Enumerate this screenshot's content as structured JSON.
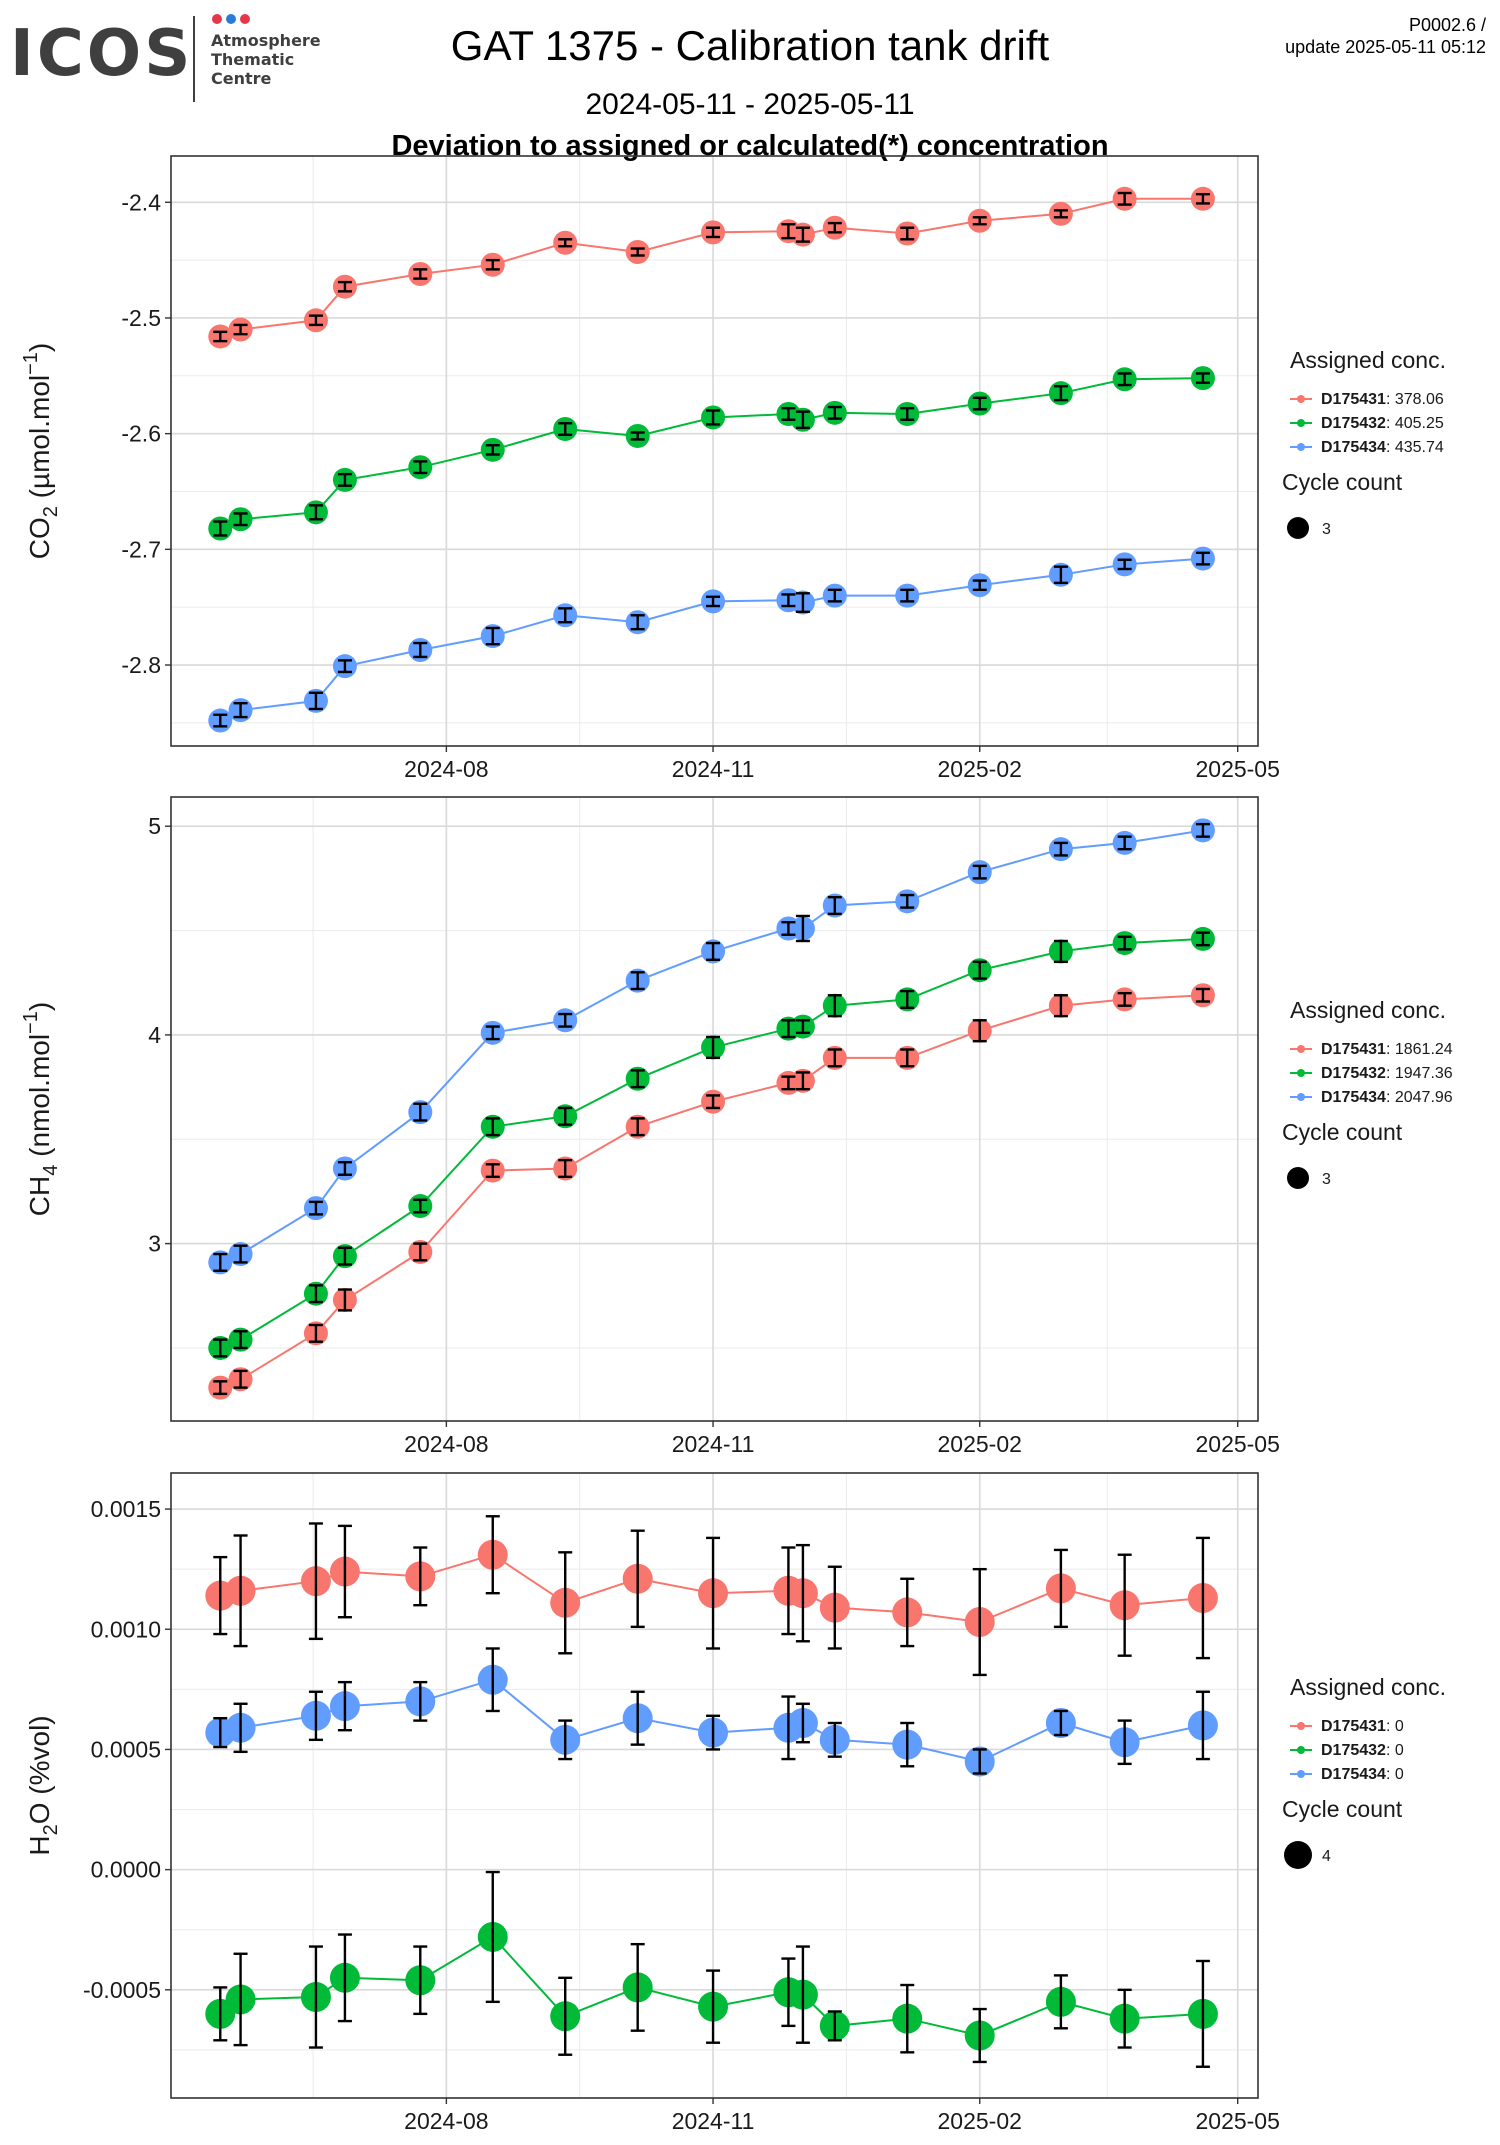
{
  "header": {
    "logo_text": "ICOS",
    "logo_sub": [
      "Atmosphere",
      "Thematic",
      "Centre"
    ],
    "logo_dot_colors": [
      "#e6364b",
      "#2b7bd6",
      "#e6364b"
    ],
    "title": "GAT 1375 - Calibration tank drift",
    "version_line1": "P0002.6 /",
    "version_line2": "update  2025-05-11 05:12",
    "date_range": "2024-05-11 - 2025-05-11",
    "subtitle": "Deviation to assigned or calculated(*) concentration"
  },
  "colors": {
    "D175431": "#f8766d",
    "D175432": "#00ba38",
    "D175434": "#619cff"
  },
  "legend": {
    "assigned_title": "Assigned conc.",
    "cycle_title": "Cycle count"
  },
  "chart_data": [
    {
      "type": "line",
      "panel": "co2",
      "ylabel": "CO2 (µmol.mol-1)",
      "ylabel_main": "CO",
      "ylabel_sub": "2",
      "ylabel_rest": " (µmol.mol",
      "ylabel_sup": "−1",
      "ylabel_end": ")",
      "ylim": [
        -2.87,
        -2.36
      ],
      "yticks": [
        -2.8,
        -2.7,
        -2.6,
        -2.5,
        -2.4
      ],
      "ytick_labels": [
        "-2.8",
        "-2.7",
        "-2.6",
        "-2.5",
        "-2.4"
      ],
      "xticks": [
        "2024-08-01",
        "2024-11-01",
        "2025-02-01",
        "2025-05-01"
      ],
      "xtick_labels": [
        "2024-08",
        "2024-11",
        "2025-02",
        "2025-05"
      ],
      "x": [
        "2024-05-15",
        "2024-05-22",
        "2024-06-17",
        "2024-06-27",
        "2024-07-23",
        "2024-08-17",
        "2024-09-11",
        "2024-10-06",
        "2024-11-01",
        "2024-11-27",
        "2024-12-02",
        "2024-12-13",
        "2025-01-07",
        "2025-02-01",
        "2025-03-01",
        "2025-03-23",
        "2025-04-19"
      ],
      "cycle_label": "3",
      "series": [
        {
          "name": "D175431",
          "assigned": "378.06",
          "values": [
            -2.516,
            -2.51,
            -2.502,
            -2.473,
            -2.462,
            -2.454,
            -2.435,
            -2.443,
            -2.426,
            -2.425,
            -2.428,
            -2.422,
            -2.427,
            -2.416,
            -2.41,
            -2.397,
            -2.397
          ],
          "errors": [
            0.004,
            0.004,
            0.004,
            0.004,
            0.004,
            0.004,
            0.003,
            0.003,
            0.004,
            0.006,
            0.006,
            0.004,
            0.005,
            0.003,
            0.003,
            0.005,
            0.004
          ]
        },
        {
          "name": "D175432",
          "assigned": "405.25",
          "values": [
            -2.682,
            -2.674,
            -2.668,
            -2.64,
            -2.629,
            -2.614,
            -2.596,
            -2.602,
            -2.586,
            -2.583,
            -2.588,
            -2.582,
            -2.583,
            -2.574,
            -2.565,
            -2.553,
            -2.552
          ],
          "errors": [
            0.006,
            0.005,
            0.006,
            0.005,
            0.005,
            0.004,
            0.005,
            0.003,
            0.006,
            0.005,
            0.007,
            0.005,
            0.005,
            0.005,
            0.006,
            0.005,
            0.004
          ]
        },
        {
          "name": "D175434",
          "assigned": "435.74",
          "values": [
            -2.848,
            -2.839,
            -2.831,
            -2.801,
            -2.787,
            -2.775,
            -2.757,
            -2.763,
            -2.745,
            -2.744,
            -2.746,
            -2.74,
            -2.74,
            -2.731,
            -2.722,
            -2.713,
            -2.708
          ],
          "errors": [
            0.005,
            0.006,
            0.007,
            0.005,
            0.006,
            0.007,
            0.006,
            0.006,
            0.004,
            0.005,
            0.008,
            0.005,
            0.005,
            0.004,
            0.007,
            0.004,
            0.005
          ]
        }
      ]
    },
    {
      "type": "line",
      "panel": "ch4",
      "ylabel": "CH4 (nmol.mol-1)",
      "ylabel_main": "CH",
      "ylabel_sub": "4",
      "ylabel_rest": " (nmol.mol",
      "ylabel_sup": "−1",
      "ylabel_end": ")",
      "ylim": [
        2.15,
        5.14
      ],
      "yticks": [
        3,
        4,
        5
      ],
      "ytick_labels": [
        "3",
        "4",
        "5"
      ],
      "xticks": [
        "2024-08-01",
        "2024-11-01",
        "2025-02-01",
        "2025-05-01"
      ],
      "xtick_labels": [
        "2024-08",
        "2024-11",
        "2025-02",
        "2025-05"
      ],
      "x": [
        "2024-05-15",
        "2024-05-22",
        "2024-06-17",
        "2024-06-27",
        "2024-07-23",
        "2024-08-17",
        "2024-09-11",
        "2024-10-06",
        "2024-11-01",
        "2024-11-27",
        "2024-12-02",
        "2024-12-13",
        "2025-01-07",
        "2025-02-01",
        "2025-03-01",
        "2025-03-23",
        "2025-04-19"
      ],
      "cycle_label": "3",
      "series": [
        {
          "name": "D175431",
          "assigned": "1861.24",
          "values": [
            2.31,
            2.35,
            2.57,
            2.73,
            2.96,
            3.35,
            3.36,
            3.56,
            3.68,
            3.77,
            3.78,
            3.89,
            3.89,
            4.02,
            4.14,
            4.17,
            4.19
          ],
          "errors": [
            0.03,
            0.04,
            0.04,
            0.05,
            0.04,
            0.03,
            0.04,
            0.04,
            0.03,
            0.03,
            0.04,
            0.04,
            0.04,
            0.05,
            0.05,
            0.03,
            0.03
          ]
        },
        {
          "name": "D175432",
          "assigned": "1947.36",
          "values": [
            2.5,
            2.54,
            2.76,
            2.94,
            3.18,
            3.56,
            3.61,
            3.79,
            3.94,
            4.03,
            4.04,
            4.14,
            4.17,
            4.31,
            4.4,
            4.44,
            4.46
          ],
          "errors": [
            0.04,
            0.04,
            0.04,
            0.04,
            0.03,
            0.04,
            0.04,
            0.04,
            0.05,
            0.04,
            0.03,
            0.05,
            0.04,
            0.04,
            0.05,
            0.03,
            0.03
          ]
        },
        {
          "name": "D175434",
          "assigned": "2047.96",
          "values": [
            2.91,
            2.95,
            3.17,
            3.36,
            3.63,
            4.01,
            4.07,
            4.26,
            4.4,
            4.51,
            4.51,
            4.62,
            4.64,
            4.78,
            4.89,
            4.92,
            4.98
          ],
          "errors": [
            0.04,
            0.04,
            0.03,
            0.03,
            0.04,
            0.03,
            0.03,
            0.04,
            0.04,
            0.03,
            0.06,
            0.04,
            0.03,
            0.03,
            0.03,
            0.03,
            0.03
          ]
        }
      ]
    },
    {
      "type": "line",
      "panel": "h2o",
      "ylabel": "H2O (%vol)",
      "ylabel_main": "H",
      "ylabel_sub": "2",
      "ylabel_rest": "O (%vol)",
      "ylabel_sup": "",
      "ylabel_end": "",
      "ylim": [
        -0.00095,
        0.00165
      ],
      "yticks": [
        -0.0005,
        0.0,
        0.0005,
        0.001,
        0.0015
      ],
      "ytick_labels": [
        "-0.0005",
        "0.0000",
        "0.0005",
        "0.0010",
        "0.0015"
      ],
      "xticks": [
        "2024-08-01",
        "2024-11-01",
        "2025-02-01",
        "2025-05-01"
      ],
      "xtick_labels": [
        "2024-08",
        "2024-11",
        "2025-02",
        "2025-05"
      ],
      "x": [
        "2024-05-15",
        "2024-05-22",
        "2024-06-17",
        "2024-06-27",
        "2024-07-23",
        "2024-08-17",
        "2024-09-11",
        "2024-10-06",
        "2024-11-01",
        "2024-11-27",
        "2024-12-02",
        "2024-12-13",
        "2025-01-07",
        "2025-02-01",
        "2025-03-01",
        "2025-03-23",
        "2025-04-19"
      ],
      "cycle_label": "4",
      "series": [
        {
          "name": "D175431",
          "assigned": "0",
          "values": [
            0.00114,
            0.00116,
            0.0012,
            0.00124,
            0.00122,
            0.00131,
            0.00111,
            0.00121,
            0.00115,
            0.00116,
            0.00115,
            0.00109,
            0.00107,
            0.00103,
            0.00117,
            0.0011,
            0.00113
          ],
          "errors": [
            0.00016,
            0.00023,
            0.00024,
            0.00019,
            0.00012,
            0.00016,
            0.00021,
            0.0002,
            0.00023,
            0.00018,
            0.0002,
            0.00017,
            0.00014,
            0.00022,
            0.00016,
            0.00021,
            0.00025
          ]
        },
        {
          "name": "D175432",
          "assigned": "0",
          "values": [
            -0.0006,
            -0.00054,
            -0.00053,
            -0.00045,
            -0.00046,
            -0.00028,
            -0.00061,
            -0.00049,
            -0.00057,
            -0.00051,
            -0.00052,
            -0.00065,
            -0.00062,
            -0.00069,
            -0.00055,
            -0.00062,
            -0.0006
          ],
          "errors": [
            0.00011,
            0.00019,
            0.00021,
            0.00018,
            0.00014,
            0.00027,
            0.00016,
            0.00018,
            0.00015,
            0.00014,
            0.0002,
            6e-05,
            0.00014,
            0.00011,
            0.00011,
            0.00012,
            0.00022
          ]
        },
        {
          "name": "D175434",
          "assigned": "0",
          "values": [
            0.00057,
            0.00059,
            0.00064,
            0.00068,
            0.0007,
            0.00079,
            0.00054,
            0.00063,
            0.00057,
            0.00059,
            0.00061,
            0.00054,
            0.00052,
            0.00045,
            0.00061,
            0.00053,
            0.0006
          ],
          "errors": [
            6e-05,
            0.0001,
            0.0001,
            0.0001,
            8e-05,
            0.00013,
            8e-05,
            0.00011,
            7e-05,
            0.00013,
            8e-05,
            7e-05,
            9e-05,
            5e-05,
            5e-05,
            9e-05,
            0.00014
          ]
        }
      ]
    }
  ]
}
